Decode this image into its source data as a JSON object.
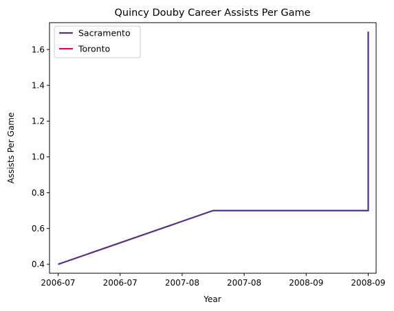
{
  "chart_data": {
    "type": "line",
    "title": "Quincy Douby Career Assists Per Game",
    "xlabel": "Year",
    "ylabel": "Assists Per Game",
    "x_tick_labels": [
      "2006-07",
      "2006-07",
      "2007-08",
      "2007-08",
      "2008-09",
      "2008-09"
    ],
    "y_ticks": [
      0.4,
      0.6,
      0.8,
      1.0,
      1.2,
      1.4,
      1.6
    ],
    "y_tick_labels": [
      "0.4",
      "0.6",
      "0.8",
      "1.0",
      "1.2",
      "1.4",
      "1.6"
    ],
    "ylim": [
      0.35,
      1.75
    ],
    "grid": false,
    "legend_position": "top-left",
    "series": [
      {
        "name": "Sacramento",
        "color": "#5b2c83",
        "points": [
          {
            "x": "2006-07",
            "y": 0.4
          },
          {
            "x": "2007-08",
            "y": 0.7
          },
          {
            "x": "2008-09",
            "y": 0.7
          },
          {
            "x": "2008-09",
            "y": 1.7
          }
        ]
      },
      {
        "name": "Toronto",
        "color": "#ce1141",
        "points": []
      }
    ]
  }
}
